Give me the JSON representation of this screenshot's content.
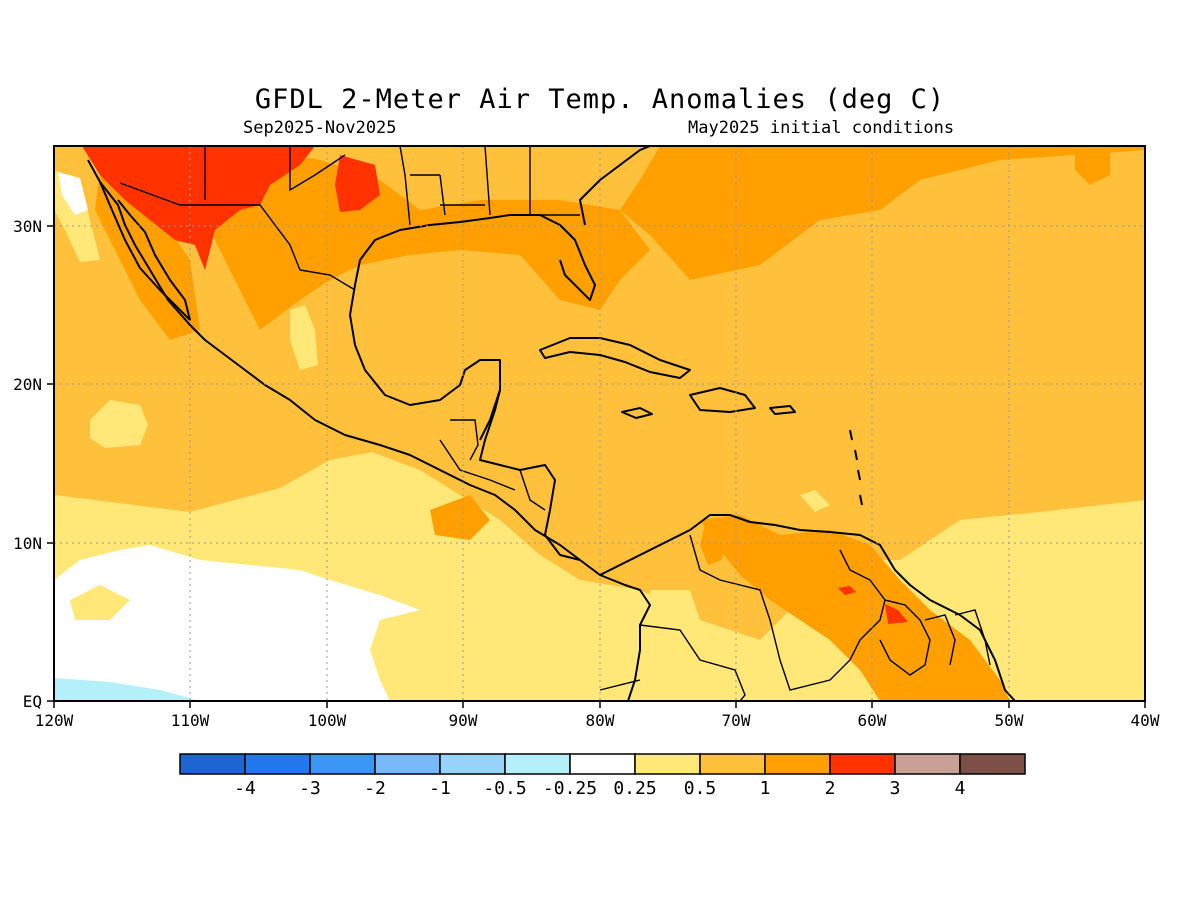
{
  "header": {
    "title": "GFDL 2-Meter Air Temp. Anomalies (deg C)",
    "season": "Sep2025-Nov2025",
    "initial_conditions": "May2025 initial conditions"
  },
  "axes": {
    "lat_labels": [
      "EQ",
      "10N",
      "20N",
      "30N"
    ],
    "lon_labels": [
      "120W",
      "110W",
      "100W",
      "90W",
      "80W",
      "70W",
      "60W",
      "50W",
      "40W"
    ]
  },
  "colorbar": {
    "colors": [
      "#1e64d2",
      "#2478ee",
      "#3c96f5",
      "#78b9fa",
      "#96d2fa",
      "#b4f0fa",
      "#ffffff",
      "#ffe878",
      "#ffc03c",
      "#ffa000",
      "#ff3200",
      "#c8a096",
      "#7d4f46"
    ],
    "labels": [
      "-4",
      "-3",
      "-2",
      "-1",
      "-0.5",
      "-0.25",
      "0.25",
      "0.5",
      "1",
      "2",
      "3",
      "4"
    ]
  },
  "palette": {
    "pale_blue": "#b4f0fa",
    "white": "#ffffff",
    "light_yellow": "#ffe878",
    "yellow_orange": "#ffc03c",
    "orange": "#ffa000",
    "red": "#ff3200"
  }
}
